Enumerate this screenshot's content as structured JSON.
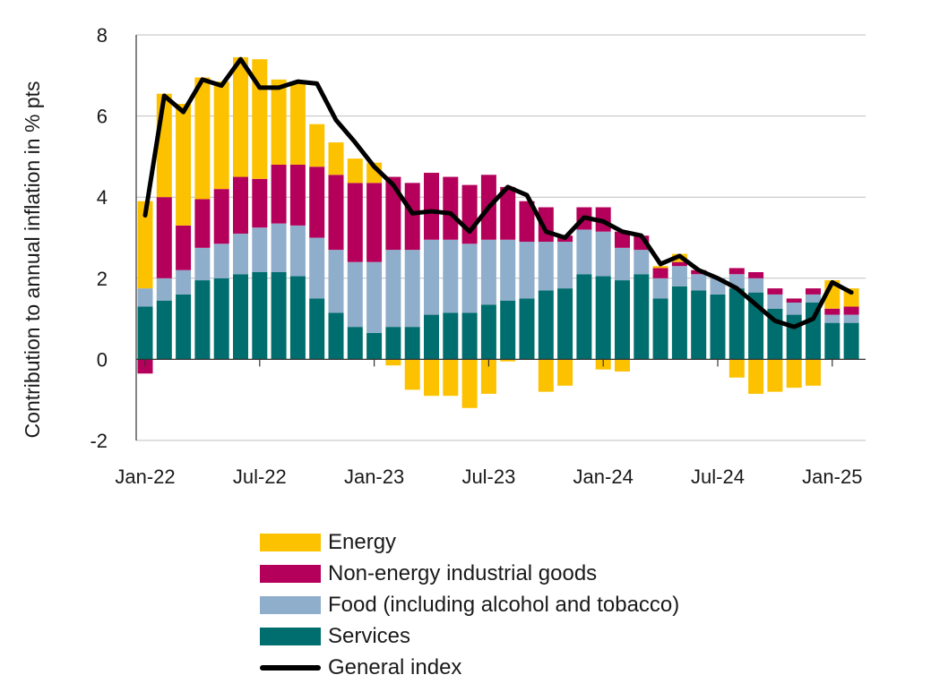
{
  "chart_data": {
    "type": "bar",
    "stacked": true,
    "ylabel": "Contribution to annual inflation in % pts",
    "ylim": [
      -2,
      8
    ],
    "yticks": [
      -2,
      0,
      2,
      4,
      6,
      8
    ],
    "grid": "horizontal",
    "legend_position": "bottom",
    "x": [
      "Jan-22",
      "Feb-22",
      "Mar-22",
      "Apr-22",
      "May-22",
      "Jun-22",
      "Jul-22",
      "Aug-22",
      "Sep-22",
      "Oct-22",
      "Nov-22",
      "Dec-22",
      "Jan-23",
      "Feb-23",
      "Mar-23",
      "Apr-23",
      "May-23",
      "Jun-23",
      "Jul-23",
      "Aug-23",
      "Sep-23",
      "Oct-23",
      "Nov-23",
      "Dec-23",
      "Jan-24",
      "Feb-24",
      "Mar-24",
      "Apr-24",
      "May-24",
      "Jun-24",
      "Jul-24",
      "Aug-24",
      "Sep-24",
      "Oct-24",
      "Nov-24",
      "Dec-24",
      "Jan-25",
      "Feb-25"
    ],
    "x_tick_labels": [
      "Jan-22",
      "Jul-22",
      "Jan-23",
      "Jul-23",
      "Jan-24",
      "Jul-24",
      "Jan-25"
    ],
    "series": [
      {
        "name": "Services",
        "color": "#006e6e",
        "values": [
          1.3,
          1.45,
          1.6,
          1.95,
          2.0,
          2.1,
          2.15,
          2.15,
          2.05,
          1.5,
          1.15,
          0.8,
          0.65,
          0.8,
          0.8,
          1.1,
          1.15,
          1.15,
          1.35,
          1.45,
          1.5,
          1.7,
          1.75,
          2.1,
          2.05,
          1.95,
          2.1,
          1.5,
          1.8,
          1.7,
          1.6,
          1.75,
          1.65,
          1.25,
          1.1,
          1.4,
          0.9,
          0.9
        ]
      },
      {
        "name": "Food (including alcohol and tobacco)",
        "color": "#8faecb",
        "values": [
          0.45,
          0.55,
          0.6,
          0.8,
          0.85,
          1.0,
          1.1,
          1.2,
          1.25,
          1.5,
          1.55,
          1.6,
          1.75,
          1.9,
          1.9,
          1.85,
          1.8,
          1.7,
          1.6,
          1.5,
          1.4,
          1.2,
          1.15,
          1.1,
          1.1,
          0.8,
          0.6,
          0.5,
          0.5,
          0.4,
          0.4,
          0.35,
          0.35,
          0.35,
          0.3,
          0.2,
          0.2,
          0.2
        ]
      },
      {
        "name": "Non-energy industrial goods",
        "color": "#b5005b",
        "values": [
          -0.35,
          2.0,
          1.1,
          1.2,
          1.35,
          1.4,
          1.2,
          1.45,
          1.5,
          1.75,
          1.85,
          1.95,
          1.95,
          1.8,
          1.65,
          1.65,
          1.55,
          1.45,
          1.6,
          1.3,
          1.0,
          0.85,
          0.15,
          0.55,
          0.6,
          0.4,
          0.35,
          0.25,
          0.1,
          0.1,
          0.0,
          0.15,
          0.15,
          0.15,
          0.1,
          0.15,
          0.15,
          0.2
        ]
      },
      {
        "name": "Energy",
        "color": "#fcc200",
        "values": [
          2.15,
          2.55,
          3.0,
          3.0,
          2.65,
          2.95,
          2.95,
          2.1,
          2.0,
          1.05,
          0.8,
          0.6,
          0.5,
          -0.15,
          -0.75,
          -0.9,
          -0.9,
          -1.2,
          -0.85,
          -0.05,
          0.0,
          -0.8,
          -0.65,
          0.0,
          -0.25,
          -0.3,
          0.0,
          0.05,
          0.2,
          0.0,
          0.0,
          -0.45,
          -0.85,
          -0.8,
          -0.7,
          -0.65,
          0.7,
          0.45
        ]
      },
      {
        "name": "General index",
        "type": "line",
        "color": "#000000",
        "values": [
          3.55,
          6.5,
          6.1,
          6.9,
          6.75,
          7.4,
          6.7,
          6.7,
          6.85,
          6.8,
          5.9,
          5.35,
          4.75,
          4.3,
          3.6,
          3.65,
          3.6,
          3.15,
          3.75,
          4.25,
          4.05,
          3.15,
          3.0,
          3.5,
          3.4,
          3.15,
          3.05,
          2.35,
          2.55,
          2.2,
          2.0,
          1.75,
          1.35,
          0.95,
          0.8,
          1.0,
          1.9,
          1.65
        ]
      }
    ]
  }
}
